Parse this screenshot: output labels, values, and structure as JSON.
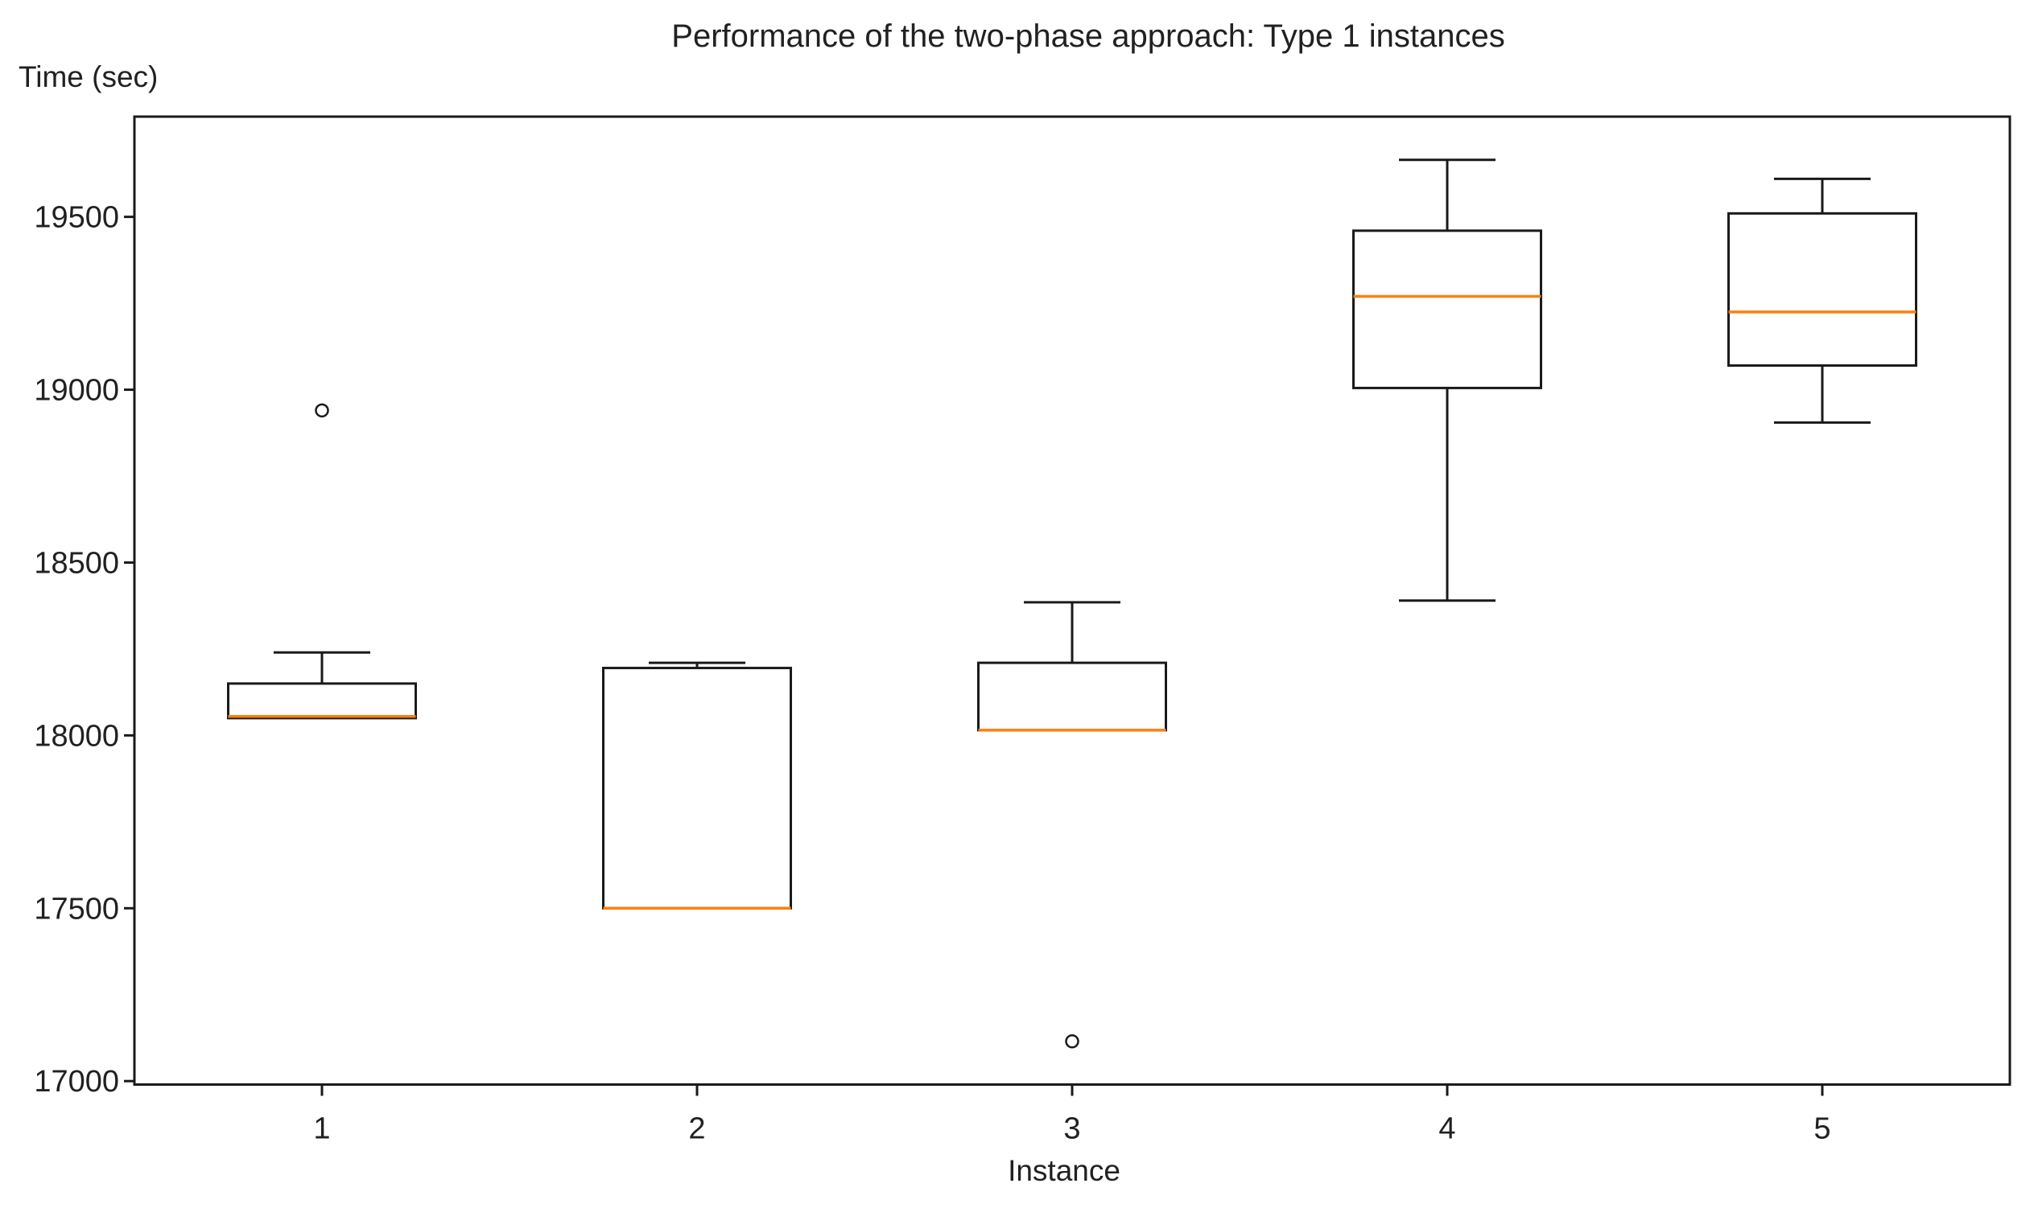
{
  "title": "Performance of the two-phase approach: Type 1 instances",
  "y_axis_header": "Time (sec)",
  "x_axis_label": "Instance",
  "colors": {
    "line": "#1a1a1a",
    "median": "#ff7f0e",
    "text": "#212121",
    "background": "#ffffff"
  },
  "chart_data": {
    "type": "boxplot",
    "title": "Performance of the two-phase approach: Type 1 instances",
    "xlabel": "Instance",
    "ylabel": "Time (sec)",
    "ylim": [
      16990,
      19790
    ],
    "yticks": [
      17000,
      17500,
      18000,
      18500,
      19000,
      19500
    ],
    "grid": false,
    "legend": "none",
    "categories": [
      "1",
      "2",
      "3",
      "4",
      "5"
    ],
    "series": [
      {
        "instance": "1",
        "min": 18050,
        "q1": 18050,
        "median": 18055,
        "q3": 18150,
        "max": 18240,
        "outliers": [
          18940
        ]
      },
      {
        "instance": "2",
        "min": 17500,
        "q1": 17500,
        "median": 17500,
        "q3": 18195,
        "max": 18210,
        "outliers": []
      },
      {
        "instance": "3",
        "min": 18015,
        "q1": 18015,
        "median": 18015,
        "q3": 18210,
        "max": 18385,
        "outliers": [
          17115
        ]
      },
      {
        "instance": "4",
        "min": 18390,
        "q1": 19005,
        "median": 19270,
        "q3": 19460,
        "max": 19665,
        "outliers": []
      },
      {
        "instance": "5",
        "min": 18905,
        "q1": 19070,
        "median": 19225,
        "q3": 19510,
        "max": 19610,
        "outliers": []
      }
    ]
  }
}
